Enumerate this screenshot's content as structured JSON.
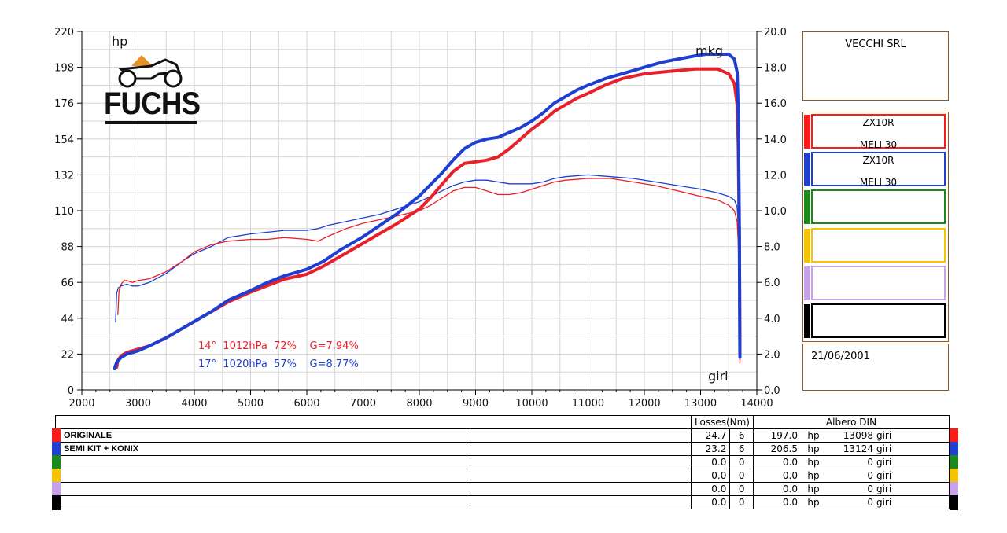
{
  "chart_data": {
    "type": "line",
    "x_unit_label": "giri",
    "y_left_label": "hp",
    "y_right_label": "mkg",
    "xlim": [
      2000,
      14000
    ],
    "ylim_left": [
      0,
      220
    ],
    "ylim_right": [
      0,
      20
    ],
    "x_ticks": [
      2000,
      3000,
      4000,
      5000,
      6000,
      7000,
      8000,
      9000,
      10000,
      11000,
      12000,
      13000,
      14000
    ],
    "y_left_ticks": [
      0,
      22,
      44,
      66,
      88,
      110,
      132,
      154,
      176,
      198,
      220
    ],
    "y_right_ticks": [
      "0.0",
      "2.0",
      "4.0",
      "6.0",
      "8.0",
      "10.0",
      "12.0",
      "14.0",
      "16.0",
      "18.0",
      "20.0"
    ],
    "grid": true,
    "series": [
      {
        "name": "ORIGINALE",
        "quantity": "power",
        "axis": "left",
        "color": "#e8202a",
        "x": [
          2620,
          2640,
          2700,
          2800,
          3000,
          3200,
          3500,
          3800,
          4000,
          4300,
          4600,
          5000,
          5300,
          5600,
          6000,
          6300,
          6600,
          7000,
          7300,
          7600,
          8000,
          8200,
          8400,
          8600,
          8800,
          9000,
          9200,
          9400,
          9600,
          9800,
          10000,
          10200,
          10400,
          10600,
          10800,
          11000,
          11300,
          11600,
          12000,
          12300,
          12600,
          12900,
          13100,
          13300,
          13500,
          13600,
          13650,
          13670,
          13690,
          13700
        ],
        "values": [
          14,
          18,
          21,
          23,
          25,
          27,
          32,
          38,
          42,
          48,
          54,
          60,
          64,
          68,
          71,
          76,
          82,
          90,
          96,
          102,
          111,
          118,
          126,
          134,
          139,
          140,
          141,
          143,
          148,
          154,
          160,
          165,
          171,
          175,
          179,
          182,
          187,
          191,
          194,
          195,
          196,
          197,
          197,
          197,
          194,
          188,
          175,
          150,
          90,
          20
        ]
      },
      {
        "name": "SEMI KIT + KONIX",
        "quantity": "power",
        "axis": "left",
        "color": "#1f3fd0",
        "x": [
          2580,
          2620,
          2700,
          2800,
          3000,
          3200,
          3500,
          3800,
          4000,
          4300,
          4600,
          5000,
          5300,
          5600,
          6000,
          6300,
          6600,
          7000,
          7300,
          7600,
          8000,
          8200,
          8400,
          8600,
          8800,
          9000,
          9200,
          9400,
          9600,
          9800,
          10000,
          10200,
          10400,
          10600,
          10800,
          11000,
          11300,
          11600,
          12000,
          12300,
          12600,
          12900,
          13100,
          13300,
          13500,
          13600,
          13650,
          13670,
          13690,
          13700
        ],
        "values": [
          13,
          17,
          20,
          22,
          24,
          27,
          32,
          38,
          42,
          48,
          55,
          61,
          66,
          70,
          74,
          79,
          86,
          94,
          101,
          108,
          119,
          126,
          133,
          141,
          148,
          152,
          154,
          155,
          158,
          161,
          165,
          170,
          176,
          180,
          184,
          187,
          191,
          194,
          198,
          201,
          203,
          205,
          206,
          206,
          206,
          203,
          195,
          170,
          100,
          20
        ]
      },
      {
        "name": "ORIGINALE",
        "quantity": "torque",
        "axis": "right",
        "color": "#e8202a",
        "x": [
          2640,
          2660,
          2700,
          2750,
          2800,
          2900,
          3000,
          3200,
          3500,
          3800,
          4000,
          4300,
          4600,
          5000,
          5300,
          5600,
          6000,
          6200,
          6400,
          6700,
          7000,
          7300,
          7600,
          8000,
          8200,
          8400,
          8600,
          8800,
          9000,
          9200,
          9400,
          9600,
          9800,
          10000,
          10200,
          10400,
          10600,
          11000,
          11400,
          11800,
          12200,
          12600,
          13000,
          13300,
          13500,
          13600,
          13650,
          13680,
          13690,
          13700
        ],
        "values": [
          4.2,
          5.5,
          5.9,
          6.1,
          6.1,
          6.0,
          6.1,
          6.2,
          6.6,
          7.2,
          7.7,
          8.1,
          8.3,
          8.4,
          8.4,
          8.5,
          8.4,
          8.3,
          8.6,
          9.0,
          9.3,
          9.5,
          9.7,
          10.0,
          10.3,
          10.7,
          11.1,
          11.3,
          11.3,
          11.1,
          10.9,
          10.9,
          11.0,
          11.2,
          11.4,
          11.6,
          11.7,
          11.8,
          11.8,
          11.6,
          11.4,
          11.1,
          10.8,
          10.6,
          10.3,
          10.0,
          9.4,
          7.5,
          4.5,
          1.5
        ]
      },
      {
        "name": "SEMI KIT + KONIX",
        "quantity": "torque",
        "axis": "right",
        "color": "#1f3fd0",
        "x": [
          2600,
          2620,
          2650,
          2700,
          2800,
          2900,
          3000,
          3200,
          3500,
          3800,
          4000,
          4300,
          4600,
          5000,
          5300,
          5600,
          6000,
          6200,
          6400,
          6700,
          7000,
          7300,
          7600,
          8000,
          8200,
          8400,
          8600,
          8800,
          9000,
          9200,
          9400,
          9600,
          9800,
          10000,
          10200,
          10400,
          10600,
          11000,
          11400,
          11800,
          12200,
          12600,
          13000,
          13300,
          13500,
          13600,
          13650,
          13680,
          13690,
          13700
        ],
        "values": [
          3.8,
          5.4,
          5.7,
          5.8,
          5.9,
          5.8,
          5.8,
          6.0,
          6.5,
          7.2,
          7.6,
          8.0,
          8.5,
          8.7,
          8.8,
          8.9,
          8.9,
          9.0,
          9.2,
          9.4,
          9.6,
          9.8,
          10.1,
          10.5,
          10.8,
          11.1,
          11.4,
          11.6,
          11.7,
          11.7,
          11.6,
          11.5,
          11.5,
          11.5,
          11.6,
          11.8,
          11.9,
          12.0,
          11.9,
          11.8,
          11.6,
          11.4,
          11.2,
          11.0,
          10.8,
          10.6,
          10.2,
          8.5,
          5.0,
          1.5
        ]
      }
    ],
    "conditions": [
      {
        "text": "14°  1012hPa  72%    G=7.94%",
        "color": "#e8202a"
      },
      {
        "text": "17°  1020hPa  57%    G=8.77%",
        "color": "#1f3fd0"
      }
    ]
  },
  "logo": {
    "text": "FUCHS",
    "accent": "#e8902a"
  },
  "panel": {
    "company": "VECCHI SRL",
    "date": "21/06/2001",
    "legend": [
      {
        "color": "#ff1a1a",
        "line1": "ZX10R",
        "line2": "MELI 30"
      },
      {
        "color": "#1f3fd0",
        "line1": "ZX10R",
        "line2": "MELI 30"
      },
      {
        "color": "#1a8a1a",
        "line1": "",
        "line2": ""
      },
      {
        "color": "#f5c400",
        "line1": "",
        "line2": ""
      },
      {
        "color": "#c8a2e8",
        "line1": "",
        "line2": ""
      },
      {
        "color": "#000000",
        "line1": "",
        "line2": ""
      }
    ]
  },
  "table": {
    "losses_header": "Losses(Nm)",
    "albero_header": "Albero DIN",
    "rows": [
      {
        "color": "#ff1a1a",
        "name": "ORIGINALE",
        "loss": "24.7",
        "loss2": "6",
        "hp": "197.0",
        "hp_unit": "hp",
        "rpm": "13098",
        "rpm_unit": "giri"
      },
      {
        "color": "#1f3fd0",
        "name": "SEMI KIT + KONIX",
        "loss": "23.2",
        "loss2": "6",
        "hp": "206.5",
        "hp_unit": "hp",
        "rpm": "13124",
        "rpm_unit": "giri"
      },
      {
        "color": "#1a8a1a",
        "name": "",
        "loss": "0.0",
        "loss2": "0",
        "hp": "0.0",
        "hp_unit": "hp",
        "rpm": "0",
        "rpm_unit": "giri"
      },
      {
        "color": "#f5c400",
        "name": "",
        "loss": "0.0",
        "loss2": "0",
        "hp": "0.0",
        "hp_unit": "hp",
        "rpm": "0",
        "rpm_unit": "giri"
      },
      {
        "color": "#c8a2e8",
        "name": "",
        "loss": "0.0",
        "loss2": "0",
        "hp": "0.0",
        "hp_unit": "hp",
        "rpm": "0",
        "rpm_unit": "giri"
      },
      {
        "color": "#000000",
        "name": "",
        "loss": "0.0",
        "loss2": "0",
        "hp": "0.0",
        "hp_unit": "hp",
        "rpm": "0",
        "rpm_unit": "giri"
      }
    ]
  }
}
